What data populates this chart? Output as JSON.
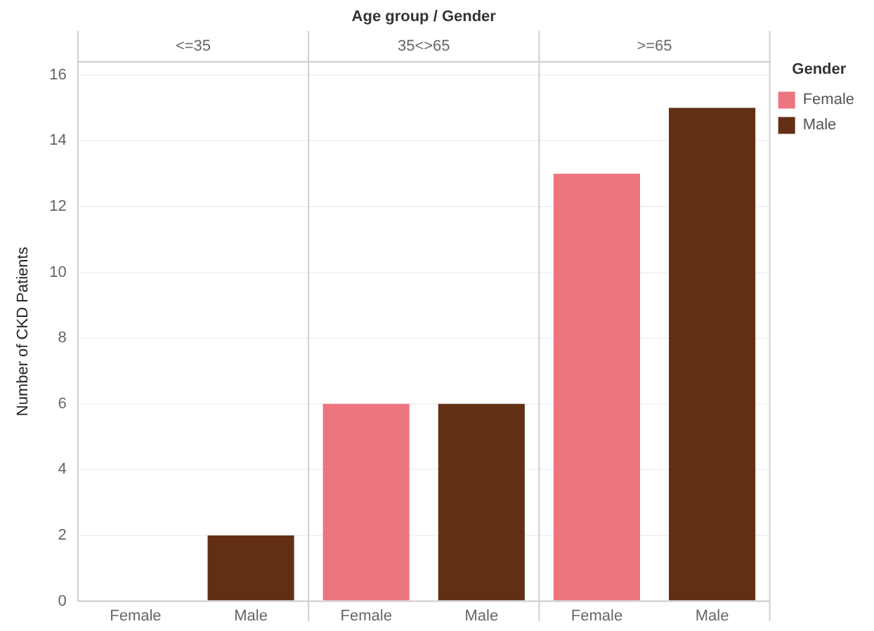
{
  "chart_data": {
    "type": "bar",
    "xlabel": "Age group / Gender",
    "ylabel": "Number of CKD Patients",
    "legend_title": "Gender",
    "categories": [
      "Female",
      "Male",
      "Female",
      "Male",
      "Female",
      "Male"
    ],
    "annotations": [
      "<=35",
      "35<>65",
      ">=65"
    ],
    "stacked": true,
    "series": [
      {
        "name": "Female",
        "color": "#ec7580",
        "values": [
          null,
          null,
          6,
          null,
          13,
          null
        ]
      },
      {
        "name": "Male",
        "color": "#622f14",
        "values": [
          null,
          2,
          null,
          6,
          null,
          15
        ]
      }
    ],
    "ylim": [
      0,
      16.4
    ],
    "yticks": [
      0,
      2,
      4,
      6,
      8,
      10,
      12,
      14,
      16
    ],
    "grid": "y",
    "legend": "top right"
  }
}
